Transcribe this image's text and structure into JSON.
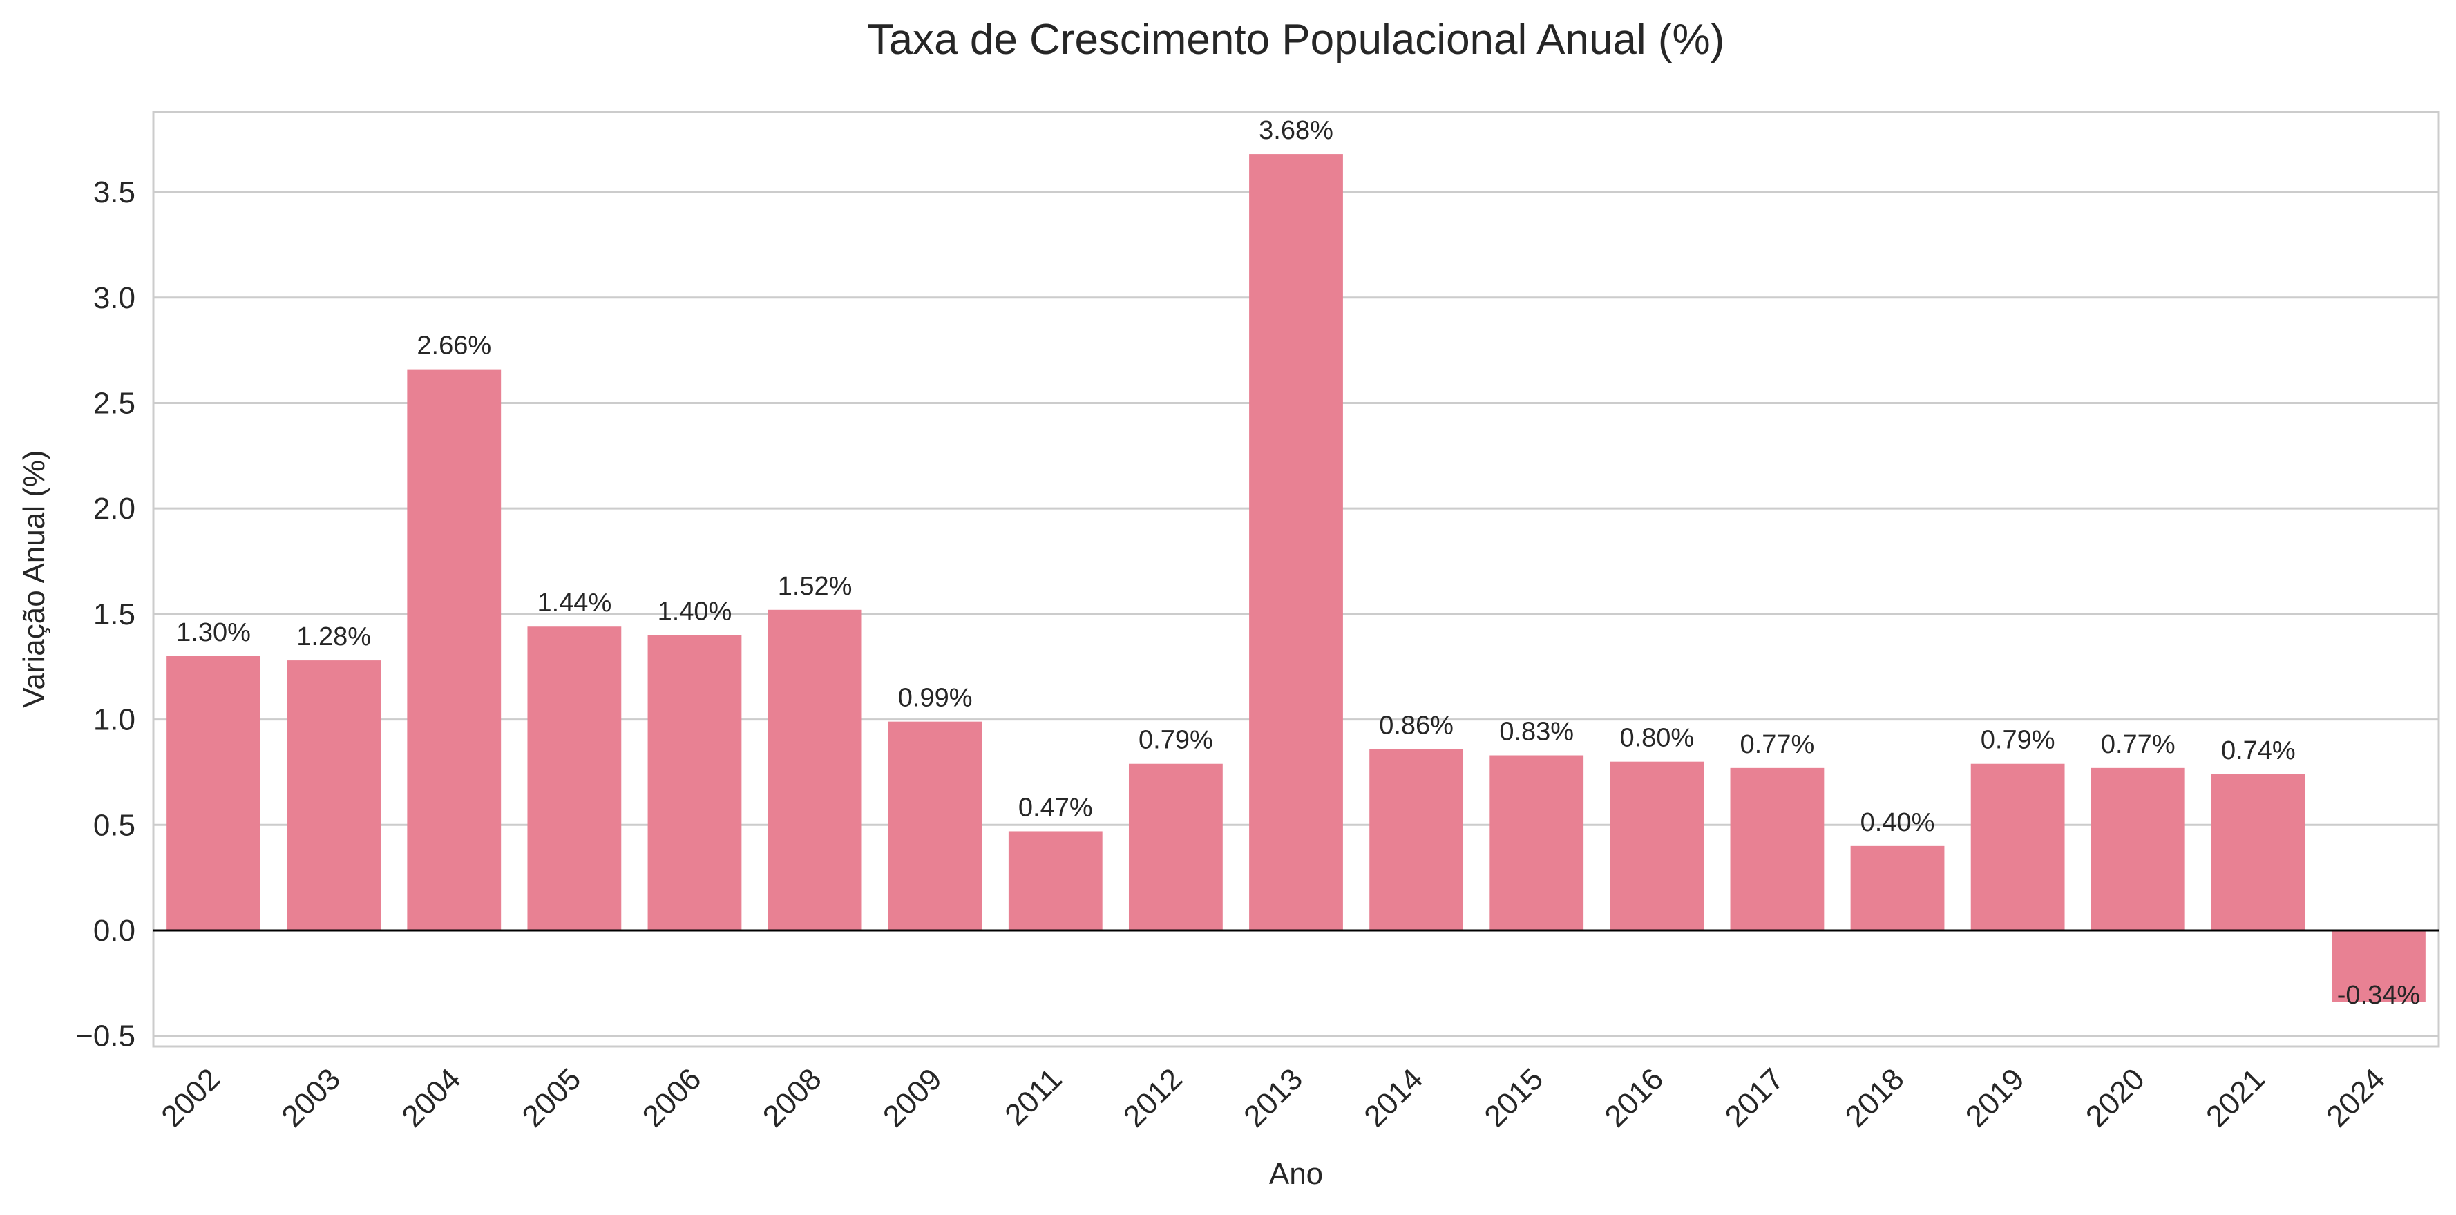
{
  "chart_data": {
    "type": "bar",
    "title": "Taxa de Crescimento Populacional Anual (%)",
    "xlabel": "Ano",
    "ylabel": "Variação Anual (%)",
    "categories": [
      "2002",
      "2003",
      "2004",
      "2005",
      "2006",
      "2008",
      "2009",
      "2011",
      "2012",
      "2013",
      "2014",
      "2015",
      "2016",
      "2017",
      "2018",
      "2019",
      "2020",
      "2021",
      "2024"
    ],
    "values": [
      1.3,
      1.28,
      2.66,
      1.44,
      1.4,
      1.52,
      0.99,
      0.47,
      0.79,
      3.68,
      0.86,
      0.83,
      0.8,
      0.77,
      0.4,
      0.79,
      0.77,
      0.74,
      -0.34
    ],
    "data_labels": [
      "1.30%",
      "1.28%",
      "2.66%",
      "1.44%",
      "1.40%",
      "1.52%",
      "0.99%",
      "0.47%",
      "0.79%",
      "3.68%",
      "0.86%",
      "0.83%",
      "0.80%",
      "0.77%",
      "0.40%",
      "0.79%",
      "0.77%",
      "0.74%",
      "-0.34%"
    ],
    "ylim": [
      -0.55,
      3.88
    ],
    "yticks": [
      -0.5,
      0.0,
      0.5,
      1.0,
      1.5,
      2.0,
      2.5,
      3.0,
      3.5
    ],
    "ytick_labels": [
      "−0.5",
      "0.0",
      "0.5",
      "1.0",
      "1.5",
      "2.0",
      "2.5",
      "3.0",
      "3.5"
    ],
    "grid": "horizontal",
    "legend": "none",
    "colors": {
      "bar": "#e88193",
      "grid": "#cccccc",
      "frame": "#cccccc",
      "zero_line": "#000000",
      "text": "#262626"
    }
  }
}
